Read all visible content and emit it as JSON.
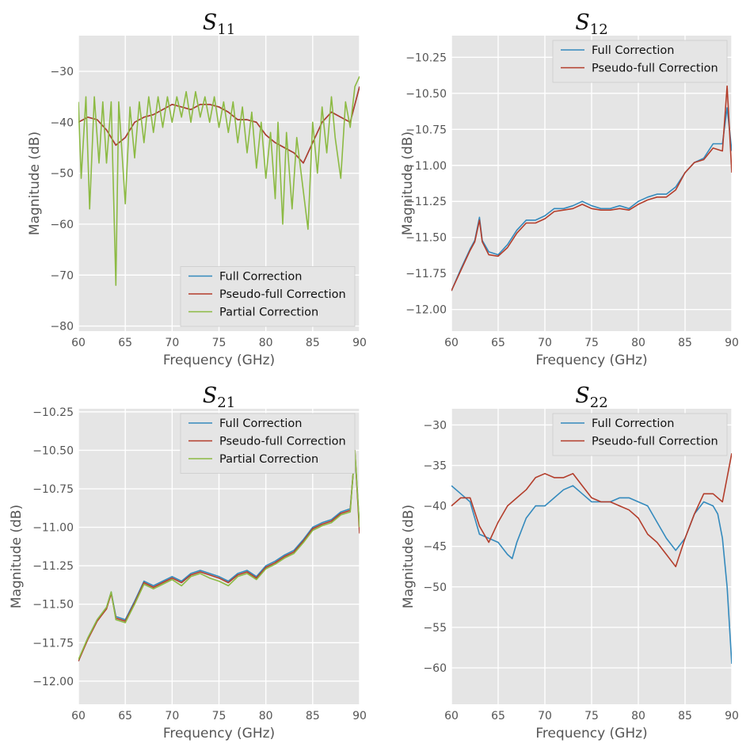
{
  "figure": {
    "colors": {
      "full": "#348abd",
      "pseudo": "#b33d2b",
      "partial": "#8cba43",
      "panel_bg": "#e5e5e5",
      "grid": "#ffffff"
    }
  },
  "chart_data": [
    {
      "type": "line",
      "title": "S11",
      "title_main": "S",
      "title_sub": "11",
      "xlabel": "Frequency (GHz)",
      "ylabel": "Magnitude (dB)",
      "xlim": [
        60,
        90
      ],
      "ylim": [
        -81,
        -23
      ],
      "xticks": [
        60,
        65,
        70,
        75,
        80,
        85,
        90
      ],
      "yticks": [
        -80,
        -70,
        -60,
        -50,
        -40,
        -30
      ],
      "grid": true,
      "legend_position": "lower-right",
      "series": [
        {
          "name": "Full Correction",
          "color_key": "full",
          "x": [
            60,
            61,
            62,
            63,
            64,
            65,
            66,
            67,
            68,
            69,
            70,
            71,
            72,
            73,
            74,
            75,
            76,
            77,
            78,
            79,
            80,
            81,
            82,
            83,
            84,
            85,
            86,
            87,
            88,
            89,
            90
          ],
          "y": [
            -40,
            -39,
            -39.5,
            -41.5,
            -44.5,
            -43,
            -40,
            -39,
            -38.5,
            -37.5,
            -36.5,
            -37,
            -37.5,
            -36.5,
            -36.5,
            -37,
            -38,
            -39.5,
            -39.5,
            -40,
            -42.5,
            -44,
            -45,
            -46,
            -48,
            -44,
            -40,
            -38,
            -39,
            -40,
            -33
          ]
        },
        {
          "name": "Pseudo-full Correction",
          "color_key": "pseudo",
          "x": [
            60,
            61,
            62,
            63,
            64,
            65,
            66,
            67,
            68,
            69,
            70,
            71,
            72,
            73,
            74,
            75,
            76,
            77,
            78,
            79,
            80,
            81,
            82,
            83,
            84,
            85,
            86,
            87,
            88,
            89,
            90
          ],
          "y": [
            -40,
            -39,
            -39.5,
            -41.5,
            -44.5,
            -43,
            -40,
            -39,
            -38.5,
            -37.5,
            -36.5,
            -37,
            -37.5,
            -36.5,
            -36.5,
            -37,
            -38,
            -39.5,
            -39.5,
            -40,
            -42.5,
            -44,
            -45,
            -46,
            -48,
            -44,
            -40,
            -38,
            -39,
            -40,
            -33
          ]
        },
        {
          "name": "Partial Correction",
          "color_key": "partial",
          "x": [
            60,
            60.3,
            60.8,
            61.2,
            61.7,
            62.2,
            62.6,
            63,
            63.5,
            64,
            64.3,
            65,
            65.5,
            66,
            66.5,
            67,
            67.5,
            68,
            68.5,
            69,
            69.5,
            70,
            70.5,
            71,
            71.5,
            72,
            72.5,
            73,
            73.5,
            74,
            74.5,
            75,
            75.5,
            76,
            76.5,
            77,
            77.5,
            78,
            78.5,
            79,
            79.5,
            80,
            80.5,
            81,
            81.3,
            81.8,
            82.2,
            82.8,
            83.3,
            83.9,
            84.5,
            85,
            85.5,
            86,
            86.5,
            87,
            87.4,
            88,
            88.5,
            89,
            89.5,
            90
          ],
          "y": [
            -36,
            -51,
            -35,
            -57,
            -35,
            -48,
            -36,
            -48,
            -36,
            -72,
            -36,
            -56,
            -37,
            -47,
            -36,
            -44,
            -35,
            -42,
            -35,
            -41,
            -35,
            -40,
            -35,
            -39,
            -34,
            -40,
            -34,
            -39,
            -35,
            -40,
            -35,
            -41,
            -36,
            -42,
            -36,
            -44,
            -37,
            -46,
            -38,
            -49,
            -40,
            -51,
            -42,
            -55,
            -40,
            -60,
            -42,
            -57,
            -43,
            -52,
            -61,
            -40,
            -50,
            -37,
            -46,
            -35,
            -43,
            -51,
            -36,
            -41,
            -33,
            -31
          ]
        }
      ]
    },
    {
      "type": "line",
      "title": "S12",
      "title_main": "S",
      "title_sub": "12",
      "xlabel": "Frequency (GHz)",
      "ylabel": "Magnitude (dB)",
      "xlim": [
        60,
        90
      ],
      "ylim": [
        -12.15,
        -10.1
      ],
      "xticks": [
        60,
        65,
        70,
        75,
        80,
        85,
        90
      ],
      "yticks": [
        -12.0,
        -11.75,
        -11.5,
        -11.25,
        -11.0,
        -10.75,
        -10.5,
        -10.25
      ],
      "ytick_labels": [
        "−12.00",
        "−11.75",
        "−11.50",
        "−11.25",
        "−11.00",
        "−10.75",
        "−10.50",
        "−10.25"
      ],
      "grid": true,
      "legend_position": "top-right",
      "series": [
        {
          "name": "Full Correction",
          "color_key": "full",
          "x": [
            60,
            61,
            62,
            62.5,
            63,
            63.3,
            64,
            65,
            66,
            67,
            68,
            69,
            70,
            71,
            72,
            73,
            74,
            75,
            76,
            77,
            78,
            79,
            80,
            81,
            82,
            83,
            84,
            85,
            86,
            87,
            88,
            89,
            89.5,
            90
          ],
          "y": [
            -11.87,
            -11.72,
            -11.58,
            -11.52,
            -11.36,
            -11.52,
            -11.6,
            -11.62,
            -11.55,
            -11.45,
            -11.38,
            -11.38,
            -11.35,
            -11.3,
            -11.3,
            -11.28,
            -11.25,
            -11.28,
            -11.3,
            -11.3,
            -11.28,
            -11.3,
            -11.25,
            -11.22,
            -11.2,
            -11.2,
            -11.15,
            -11.05,
            -10.98,
            -10.95,
            -10.85,
            -10.85,
            -10.6,
            -10.9
          ]
        },
        {
          "name": "Pseudo-full Correction",
          "color_key": "pseudo",
          "x": [
            60,
            61,
            62,
            62.5,
            63,
            63.3,
            64,
            65,
            66,
            67,
            68,
            69,
            70,
            71,
            72,
            73,
            74,
            75,
            76,
            77,
            78,
            79,
            80,
            81,
            82,
            83,
            84,
            85,
            86,
            87,
            88,
            89,
            89.5,
            90
          ],
          "y": [
            -11.87,
            -11.73,
            -11.59,
            -11.53,
            -11.38,
            -11.53,
            -11.62,
            -11.63,
            -11.57,
            -11.47,
            -11.4,
            -11.4,
            -11.37,
            -11.32,
            -11.31,
            -11.3,
            -11.27,
            -11.3,
            -11.31,
            -11.31,
            -11.3,
            -11.31,
            -11.27,
            -11.24,
            -11.22,
            -11.22,
            -11.17,
            -11.05,
            -10.98,
            -10.96,
            -10.88,
            -10.9,
            -10.45,
            -11.05
          ]
        }
      ]
    },
    {
      "type": "line",
      "title": "S21",
      "title_main": "S",
      "title_sub": "21",
      "xlabel": "Frequency (GHz)",
      "ylabel": "Magnitude (dB)",
      "xlim": [
        60,
        90
      ],
      "ylim": [
        -12.15,
        -10.23
      ],
      "xticks": [
        60,
        65,
        70,
        75,
        80,
        85,
        90
      ],
      "yticks": [
        -12.0,
        -11.75,
        -11.5,
        -11.25,
        -11.0,
        -10.75,
        -10.5,
        -10.25
      ],
      "ytick_labels": [
        "−12.00",
        "−11.75",
        "−11.50",
        "−11.25",
        "−11.00",
        "−10.75",
        "−10.50",
        "−10.25"
      ],
      "grid": true,
      "legend_position": "top-right",
      "series": [
        {
          "name": "Full Correction",
          "color_key": "full",
          "x": [
            60,
            61,
            62,
            63,
            63.5,
            64,
            65,
            66,
            67,
            68,
            69,
            70,
            71,
            72,
            73,
            74,
            75,
            76,
            77,
            78,
            79,
            80,
            81,
            82,
            83,
            84,
            85,
            86,
            87,
            88,
            89,
            89.5,
            90
          ],
          "y": [
            -11.87,
            -11.72,
            -11.6,
            -11.52,
            -11.42,
            -11.58,
            -11.6,
            -11.48,
            -11.35,
            -11.38,
            -11.35,
            -11.32,
            -11.35,
            -11.3,
            -11.28,
            -11.3,
            -11.32,
            -11.35,
            -11.3,
            -11.28,
            -11.32,
            -11.25,
            -11.22,
            -11.18,
            -11.15,
            -11.08,
            -11.0,
            -10.97,
            -10.95,
            -10.9,
            -10.88,
            -10.52,
            -11.0
          ]
        },
        {
          "name": "Pseudo-full Correction",
          "color_key": "pseudo",
          "x": [
            60,
            61,
            62,
            63,
            63.5,
            64,
            65,
            66,
            67,
            68,
            69,
            70,
            71,
            72,
            73,
            74,
            75,
            76,
            77,
            78,
            79,
            80,
            81,
            82,
            83,
            84,
            85,
            86,
            87,
            88,
            89,
            89.5,
            90
          ],
          "y": [
            -11.87,
            -11.73,
            -11.61,
            -11.53,
            -11.43,
            -11.59,
            -11.61,
            -11.49,
            -11.36,
            -11.39,
            -11.36,
            -11.33,
            -11.36,
            -11.31,
            -11.29,
            -11.31,
            -11.33,
            -11.36,
            -11.31,
            -11.29,
            -11.33,
            -11.26,
            -11.23,
            -11.19,
            -11.16,
            -11.09,
            -11.01,
            -10.98,
            -10.96,
            -10.91,
            -10.89,
            -10.5,
            -11.04
          ]
        },
        {
          "name": "Partial Correction",
          "color_key": "partial",
          "x": [
            60,
            61,
            62,
            63,
            63.5,
            64,
            65,
            66,
            67,
            68,
            69,
            70,
            71,
            72,
            73,
            74,
            75,
            76,
            77,
            78,
            79,
            80,
            81,
            82,
            83,
            84,
            85,
            86,
            87,
            88,
            89,
            89.5,
            90
          ],
          "y": [
            -11.86,
            -11.72,
            -11.6,
            -11.52,
            -11.42,
            -11.6,
            -11.62,
            -11.5,
            -11.37,
            -11.4,
            -11.37,
            -11.34,
            -11.38,
            -11.32,
            -11.3,
            -11.33,
            -11.35,
            -11.38,
            -11.32,
            -11.3,
            -11.34,
            -11.27,
            -11.24,
            -11.2,
            -11.17,
            -11.1,
            -11.02,
            -10.99,
            -10.97,
            -10.92,
            -10.9,
            -10.5,
            -11.0
          ]
        }
      ]
    },
    {
      "type": "line",
      "title": "S22",
      "title_main": "S",
      "title_sub": "22",
      "xlabel": "Frequency (GHz)",
      "ylabel": "Magnitude (dB)",
      "xlim": [
        60,
        90
      ],
      "ylim": [
        -64.5,
        -28
      ],
      "xticks": [
        60,
        65,
        70,
        75,
        80,
        85,
        90
      ],
      "yticks": [
        -60,
        -55,
        -50,
        -45,
        -40,
        -35,
        -30
      ],
      "grid": true,
      "legend_position": "top-right",
      "series": [
        {
          "name": "Full Correction",
          "color_key": "full",
          "x": [
            60,
            61,
            62,
            63,
            64,
            65,
            66,
            66.5,
            67,
            68,
            69,
            70,
            71,
            72,
            73,
            74,
            75,
            76,
            77,
            78,
            79,
            80,
            81,
            82,
            83,
            84,
            85,
            86,
            87,
            88,
            88.5,
            89,
            89.5,
            90
          ],
          "y": [
            -37.5,
            -38.5,
            -39.5,
            -43.5,
            -44,
            -44.5,
            -46,
            -46.5,
            -44.5,
            -41.5,
            -40,
            -40,
            -39,
            -38,
            -37.5,
            -38.5,
            -39.5,
            -39.5,
            -39.5,
            -39,
            -39,
            -39.5,
            -40,
            -42,
            -44,
            -45.5,
            -44,
            -41,
            -39.5,
            -40,
            -41,
            -44,
            -50,
            -59.5
          ]
        },
        {
          "name": "Pseudo-full Correction",
          "color_key": "pseudo",
          "x": [
            60,
            61,
            62,
            63,
            64,
            65,
            66,
            67,
            68,
            69,
            70,
            71,
            72,
            73,
            74,
            75,
            76,
            77,
            78,
            79,
            80,
            81,
            82,
            83,
            84,
            85,
            86,
            87,
            88,
            89,
            90
          ],
          "y": [
            -40,
            -39,
            -39,
            -42.5,
            -44.5,
            -42,
            -40,
            -39,
            -38,
            -36.5,
            -36,
            -36.5,
            -36.5,
            -36,
            -37.5,
            -39,
            -39.5,
            -39.5,
            -40,
            -40.5,
            -41.5,
            -43.5,
            -44.5,
            -46,
            -47.5,
            -44,
            -41,
            -38.5,
            -38.5,
            -39.5,
            -33.5
          ]
        }
      ]
    }
  ]
}
